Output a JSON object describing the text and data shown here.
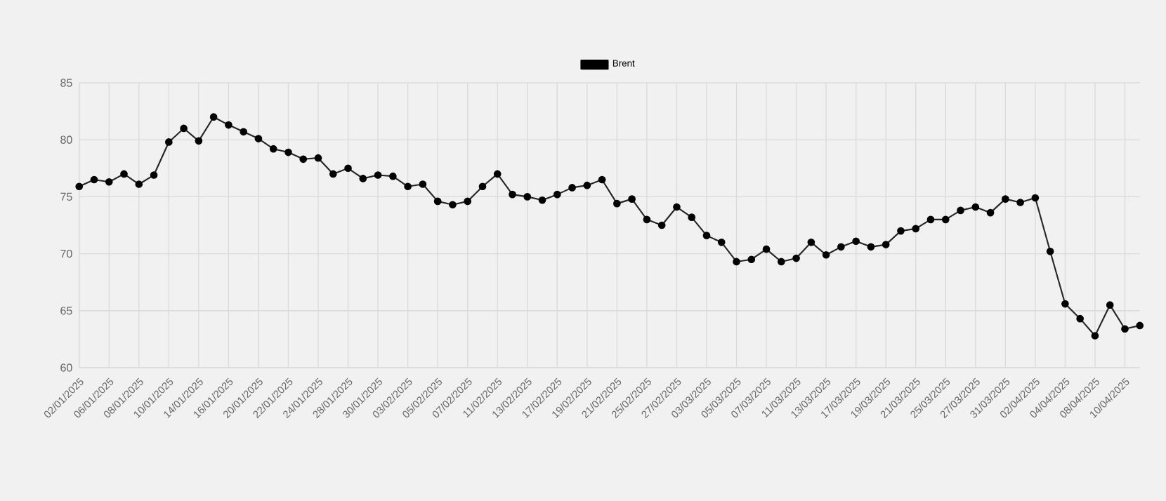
{
  "chart_data": {
    "type": "line",
    "categories": [
      "02/01/2025",
      null,
      "06/01/2025",
      null,
      "08/01/2025",
      null,
      "10/01/2025",
      null,
      "14/01/2025",
      null,
      "16/01/2025",
      null,
      "20/01/2025",
      null,
      "22/01/2025",
      null,
      "24/01/2025",
      null,
      "28/01/2025",
      null,
      "30/01/2025",
      null,
      "03/02/2025",
      null,
      "05/02/2025",
      null,
      "07/02/2025",
      null,
      "11/02/2025",
      null,
      "13/02/2025",
      null,
      "17/02/2025",
      null,
      "19/02/2025",
      null,
      "21/02/2025",
      null,
      "25/02/2025",
      null,
      "27/02/2025",
      null,
      "03/03/2025",
      null,
      "05/03/2025",
      null,
      "07/03/2025",
      null,
      "11/03/2025",
      null,
      "13/03/2025",
      null,
      "17/03/2025",
      null,
      "19/03/2025",
      null,
      "21/03/2025",
      null,
      "25/03/2025",
      null,
      "27/03/2025",
      null,
      "31/03/2025",
      null,
      "02/04/2025",
      null,
      "04/04/2025",
      null,
      "08/04/2025",
      null,
      "10/04/2025",
      null
    ],
    "series": [
      {
        "name": "Brent",
        "color": "#000000",
        "values": [
          75.9,
          76.5,
          76.3,
          77.0,
          76.1,
          76.9,
          79.8,
          81.0,
          79.9,
          82.0,
          81.3,
          80.7,
          80.1,
          79.2,
          78.9,
          78.3,
          78.4,
          77.0,
          77.5,
          76.6,
          76.9,
          76.8,
          75.9,
          76.1,
          74.6,
          74.3,
          74.6,
          75.9,
          77.0,
          75.2,
          75.0,
          74.7,
          75.2,
          75.8,
          76.0,
          76.5,
          74.4,
          74.8,
          73.0,
          72.5,
          74.1,
          73.2,
          71.6,
          71.0,
          69.3,
          69.5,
          70.4,
          69.3,
          69.6,
          71.0,
          69.9,
          70.6,
          71.1,
          70.6,
          70.8,
          72.0,
          72.2,
          73.0,
          73.0,
          73.8,
          74.1,
          73.6,
          74.8,
          74.5,
          74.9,
          70.2,
          65.6,
          64.3,
          62.8,
          65.5,
          63.4,
          63.7
        ]
      }
    ],
    "ylim": [
      60,
      85
    ],
    "yticks": [
      60,
      65,
      70,
      75,
      80,
      85
    ],
    "grid": true,
    "legend": "top",
    "marker": "circle",
    "line_style": "solid"
  }
}
